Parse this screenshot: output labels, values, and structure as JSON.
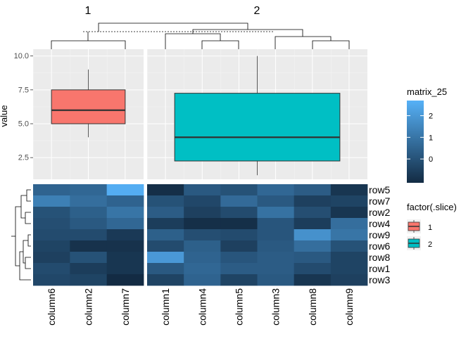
{
  "chart_data": {
    "type": "heatmap",
    "slices": [
      {
        "label": "1",
        "columns": [
          "column6",
          "column2",
          "column7"
        ]
      },
      {
        "label": "2",
        "columns": [
          "column1",
          "column4",
          "column5",
          "column3",
          "column8",
          "column9"
        ]
      }
    ],
    "rows": [
      "row5",
      "row7",
      "row2",
      "row4",
      "row9",
      "row6",
      "row8",
      "row1",
      "row3"
    ],
    "heatmap_values": [
      [
        0.5,
        0.6,
        2.6,
        -1.0,
        0.2,
        0.0,
        0.6,
        0.3,
        -0.8
      ],
      [
        1.3,
        0.8,
        0.5,
        0.0,
        -0.3,
        0.7,
        0.2,
        -0.5,
        -0.4
      ],
      [
        0.0,
        0.4,
        1.0,
        0.3,
        -0.5,
        -0.2,
        0.9,
        -0.1,
        -0.8
      ],
      [
        -0.1,
        0.2,
        0.6,
        -0.6,
        -1.0,
        -1.0,
        0.1,
        -0.6,
        0.8
      ],
      [
        -0.2,
        -0.2,
        -0.7,
        0.4,
        -0.1,
        -0.2,
        0.1,
        1.8,
        1.0
      ],
      [
        -0.4,
        -0.9,
        -0.9,
        -0.2,
        0.4,
        -0.5,
        0.2,
        0.8,
        0.0
      ],
      [
        -0.5,
        0.0,
        -0.8,
        2.0,
        0.5,
        0.1,
        0.3,
        0.2,
        -0.4
      ],
      [
        -0.2,
        -0.6,
        -0.8,
        0.2,
        0.6,
        0.3,
        0.3,
        -0.2,
        -0.4
      ],
      [
        -0.3,
        -0.4,
        -1.1,
        -0.4,
        0.5,
        -0.4,
        0.2,
        -0.8,
        -0.5
      ]
    ],
    "boxplots": [
      {
        "slice": "1",
        "min": 4.0,
        "q1": 5.0,
        "median": 6.0,
        "q3": 7.5,
        "max": 9.0,
        "fill": "#F8766D"
      },
      {
        "slice": "2",
        "min": 1.2,
        "q1": 2.25,
        "median": 4.0,
        "q3": 7.25,
        "max": 10.0,
        "fill": "#00BFC4"
      }
    ],
    "ylabel": "value",
    "ylim": [
      0.9,
      10.5
    ],
    "yticks": [
      "2.5",
      "5.0",
      "7.5",
      "10.0"
    ],
    "color_legend": {
      "title": "matrix_25",
      "min": -1.1,
      "max": 2.7,
      "ticks": [
        "0",
        "1",
        "2"
      ],
      "colors": [
        "#132B43",
        "#56B1F7"
      ]
    },
    "factor_legend": {
      "title": "factor(.slice)",
      "items": [
        {
          "label": "1",
          "color": "#F8766D"
        },
        {
          "label": "2",
          "color": "#00BFC4"
        }
      ]
    }
  }
}
